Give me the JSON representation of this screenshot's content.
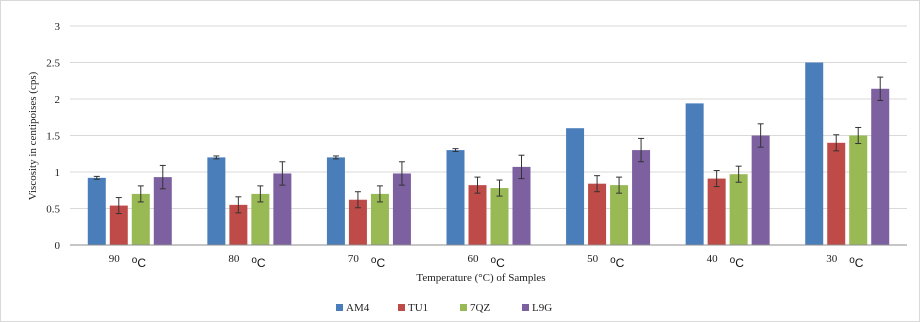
{
  "chart_data": {
    "type": "bar",
    "title": "",
    "xlabel": "Temperature (°C) of Samples",
    "ylabel": "Viscosity in centipoises (cps)",
    "ylim": [
      0,
      3
    ],
    "yticks": [
      "0",
      "0.5",
      "1",
      "1.5",
      "2",
      "2.5",
      "3"
    ],
    "grid": true,
    "legend_position": "bottom",
    "categories": [
      "90",
      "80",
      "70",
      "60",
      "50",
      "40",
      "30"
    ],
    "category_unit": "oC",
    "series": [
      {
        "name": "AM4",
        "color": "#4a7ebb",
        "values": [
          0.92,
          1.2,
          1.2,
          1.3,
          1.6,
          1.94,
          2.5
        ],
        "errors": [
          0.02,
          0.02,
          0.02,
          0.02,
          0.0,
          0.0,
          0.0
        ]
      },
      {
        "name": "TU1",
        "color": "#be4b48",
        "values": [
          0.54,
          0.55,
          0.62,
          0.82,
          0.84,
          0.91,
          1.4
        ],
        "errors": [
          0.11,
          0.11,
          0.11,
          0.11,
          0.11,
          0.11,
          0.11
        ]
      },
      {
        "name": "7QZ",
        "color": "#98b954",
        "values": [
          0.7,
          0.7,
          0.7,
          0.78,
          0.82,
          0.97,
          1.5
        ],
        "errors": [
          0.11,
          0.11,
          0.11,
          0.11,
          0.11,
          0.11,
          0.11
        ]
      },
      {
        "name": "L9G",
        "color": "#7d60a0",
        "values": [
          0.93,
          0.98,
          0.98,
          1.07,
          1.3,
          1.5,
          2.14
        ],
        "errors": [
          0.16,
          0.16,
          0.16,
          0.16,
          0.16,
          0.16,
          0.16
        ]
      }
    ]
  }
}
